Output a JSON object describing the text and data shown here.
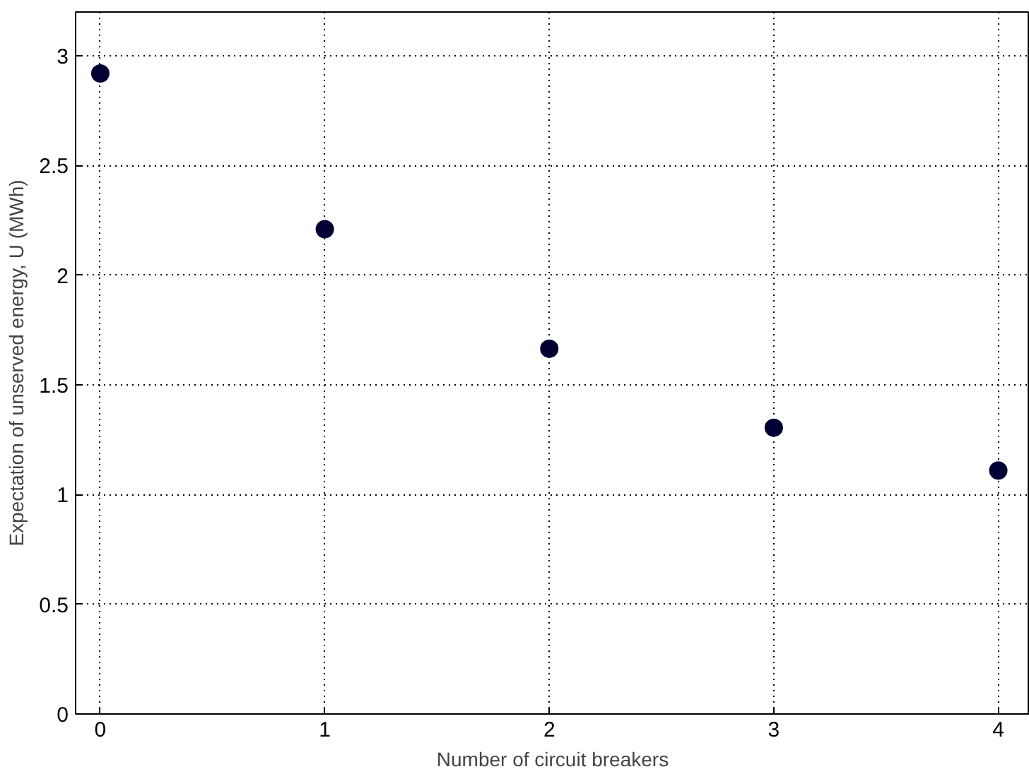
{
  "chart_data": {
    "type": "scatter",
    "xlabel": "Number of circuit breakers",
    "ylabel": "Expectation of unserved energy, U (MWh)",
    "x": [
      0,
      1,
      2,
      3,
      4
    ],
    "series": [
      {
        "color": "#000033",
        "values": [
          2.92,
          2.21,
          1.665,
          1.305,
          1.11
        ]
      }
    ],
    "xlim": [
      -0.11,
      4.14
    ],
    "ylim": [
      0,
      3.2
    ],
    "xticks": [
      0,
      1,
      2,
      3,
      4
    ],
    "yticks": [
      0,
      0.5,
      1,
      1.5,
      2,
      2.5,
      3
    ],
    "grid": true,
    "marker": "circle"
  }
}
